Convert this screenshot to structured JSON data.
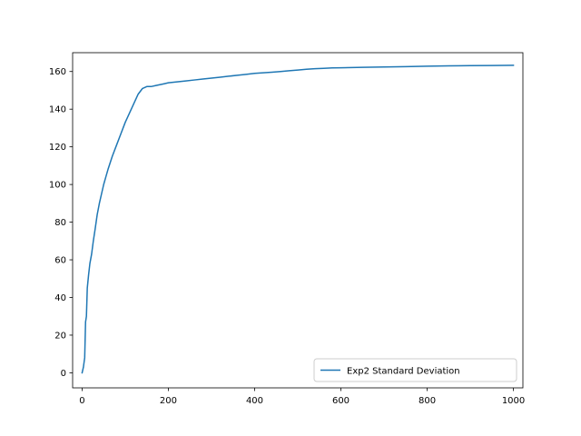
{
  "chart_data": {
    "type": "line",
    "title": "",
    "xlabel": "",
    "ylabel": "",
    "xlim": [
      -22,
      1022
    ],
    "ylim": [
      -8,
      170
    ],
    "xticks": [
      0,
      200,
      400,
      600,
      800,
      1000
    ],
    "yticks": [
      0,
      20,
      40,
      60,
      80,
      100,
      120,
      140,
      160
    ],
    "grid": false,
    "legend_position": "bottom-right",
    "series": [
      {
        "name": "Exp2 Standard Deviation",
        "color": "#1f77b4",
        "x": [
          0,
          3,
          6,
          8,
          10,
          12,
          15,
          18,
          22,
          26,
          30,
          35,
          40,
          45,
          50,
          55,
          60,
          70,
          80,
          90,
          100,
          110,
          120,
          130,
          140,
          150,
          160,
          170,
          180,
          190,
          200,
          220,
          240,
          260,
          280,
          300,
          320,
          340,
          360,
          380,
          400,
          420,
          440,
          460,
          480,
          500,
          520,
          540,
          560,
          580,
          600,
          650,
          700,
          750,
          800,
          850,
          900,
          950,
          1000
        ],
        "y": [
          0,
          3,
          8,
          27,
          30,
          45,
          52,
          58,
          63,
          70,
          76,
          84,
          90,
          95,
          100,
          104,
          108,
          115,
          121,
          127,
          133,
          138,
          143,
          148,
          151,
          152,
          152,
          152.5,
          153,
          153.5,
          154,
          154.5,
          155,
          155.5,
          156,
          156.5,
          157,
          157.5,
          158,
          158.5,
          159,
          159.3,
          159.6,
          160,
          160.4,
          160.8,
          161.2,
          161.5,
          161.7,
          161.9,
          162,
          162.2,
          162.4,
          162.6,
          162.8,
          163,
          163.1,
          163.2,
          163.3
        ]
      }
    ]
  }
}
